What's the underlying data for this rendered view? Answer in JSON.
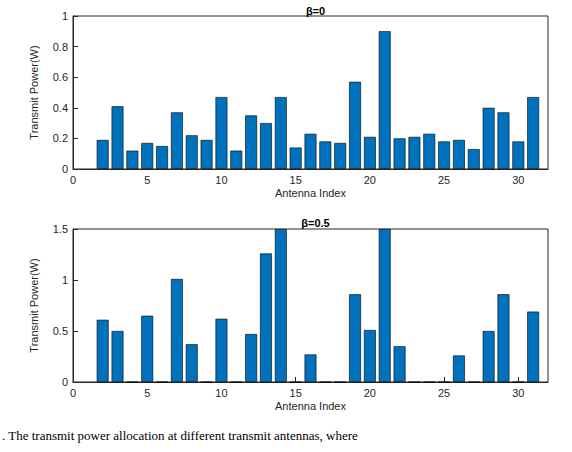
{
  "chart_data": [
    {
      "type": "bar",
      "title": "β=0",
      "x_label": "Antenna Index",
      "y_label": "Transmit Power(W)",
      "x": [
        2,
        3,
        4,
        5,
        6,
        7,
        8,
        9,
        10,
        11,
        12,
        13,
        14,
        15,
        16,
        17,
        18,
        19,
        20,
        21,
        22,
        23,
        24,
        25,
        26,
        27,
        28,
        29,
        30,
        31
      ],
      "values": [
        0.19,
        0.41,
        0.12,
        0.17,
        0.15,
        0.37,
        0.22,
        0.19,
        0.47,
        0.12,
        0.35,
        0.3,
        0.47,
        0.14,
        0.23,
        0.18,
        0.17,
        0.57,
        0.21,
        0.9,
        0.2,
        0.21,
        0.23,
        0.18,
        0.19,
        0.13,
        0.4,
        0.37,
        0.18,
        0.47
      ],
      "color": "#0072bd",
      "xlim": [
        0,
        32
      ],
      "xticks": [
        0,
        5,
        10,
        15,
        20,
        25,
        30
      ],
      "ylim": [
        0,
        1
      ],
      "yticks": [
        0,
        0.2,
        0.4,
        0.6,
        0.8,
        1
      ],
      "grid": false
    },
    {
      "type": "bar",
      "title": "β=0.5",
      "x_label": "Antenna Index",
      "y_label": "Transmit Power(W)",
      "x": [
        2,
        3,
        4,
        5,
        6,
        7,
        8,
        9,
        10,
        11,
        12,
        13,
        14,
        15,
        16,
        17,
        18,
        19,
        20,
        21,
        22,
        23,
        24,
        25,
        26,
        27,
        28,
        29,
        30,
        31
      ],
      "values": [
        0.61,
        0.5,
        0,
        0.65,
        0,
        1.01,
        0.37,
        0,
        0.62,
        0,
        0.47,
        1.26,
        1.5,
        0,
        0.27,
        0,
        0,
        0.86,
        0.51,
        1.5,
        0.35,
        0,
        0,
        0,
        0.26,
        0,
        0.5,
        0.86,
        0,
        0.69
      ],
      "color": "#0072bd",
      "xlim": [
        0,
        32
      ],
      "xticks": [
        0,
        5,
        10,
        15,
        20,
        25,
        30
      ],
      "ylim": [
        0,
        1.5
      ],
      "yticks": [
        0,
        0.5,
        1,
        1.5
      ],
      "grid": false
    }
  ],
  "caption": ". The transmit power allocation at different transmit antennas, where"
}
